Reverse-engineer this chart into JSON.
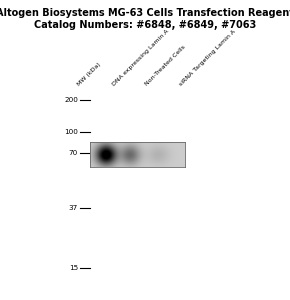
{
  "title_line1": "Altogen Biosystems MG-63 Cells Transfection Reagent",
  "title_line2": "Catalog Numbers: #6848, #6849, #7063",
  "title_fontsize": 7.0,
  "background_color": "#ffffff",
  "mw_markers": [
    200,
    100,
    70,
    37,
    15
  ],
  "column_labels": [
    "MW (kDa)",
    "DNA expressing Lamin A",
    "Non-Treated Cells",
    "siRNA Targeting Lamin A"
  ],
  "gel_bg": "#c8c0b8",
  "band1_strength": 0.92,
  "band2_strength": 0.38,
  "band3_strength": 0.1
}
